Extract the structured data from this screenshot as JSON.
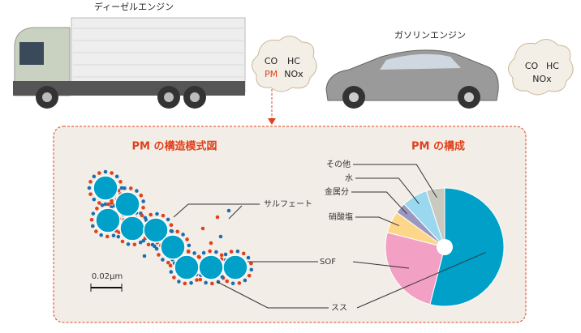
{
  "diesel": {
    "label": "ディーゼルエンジン",
    "exhaust": [
      "CO",
      "HC",
      "PM",
      "NOx"
    ]
  },
  "gasoline": {
    "label": "ガソリンエンジン",
    "exhaust": [
      "CO",
      "HC",
      "NOx"
    ]
  },
  "structure": {
    "title": "PM の構造模式図",
    "labels": [
      "サルフェート",
      "SOF",
      "スス"
    ],
    "scale": "0.02μm"
  },
  "chart_data": {
    "type": "pie",
    "title": "PM の構成",
    "categories": [
      "スス",
      "SOF",
      "硝酸塩",
      "金属分",
      "水",
      "その他"
    ],
    "values": [
      54,
      25,
      6,
      3,
      7,
      5
    ],
    "colors": [
      "#00a0c8",
      "#f2a0c4",
      "#fcd78a",
      "#9b98c0",
      "#9ad8f0",
      "#c9c9c0"
    ]
  }
}
